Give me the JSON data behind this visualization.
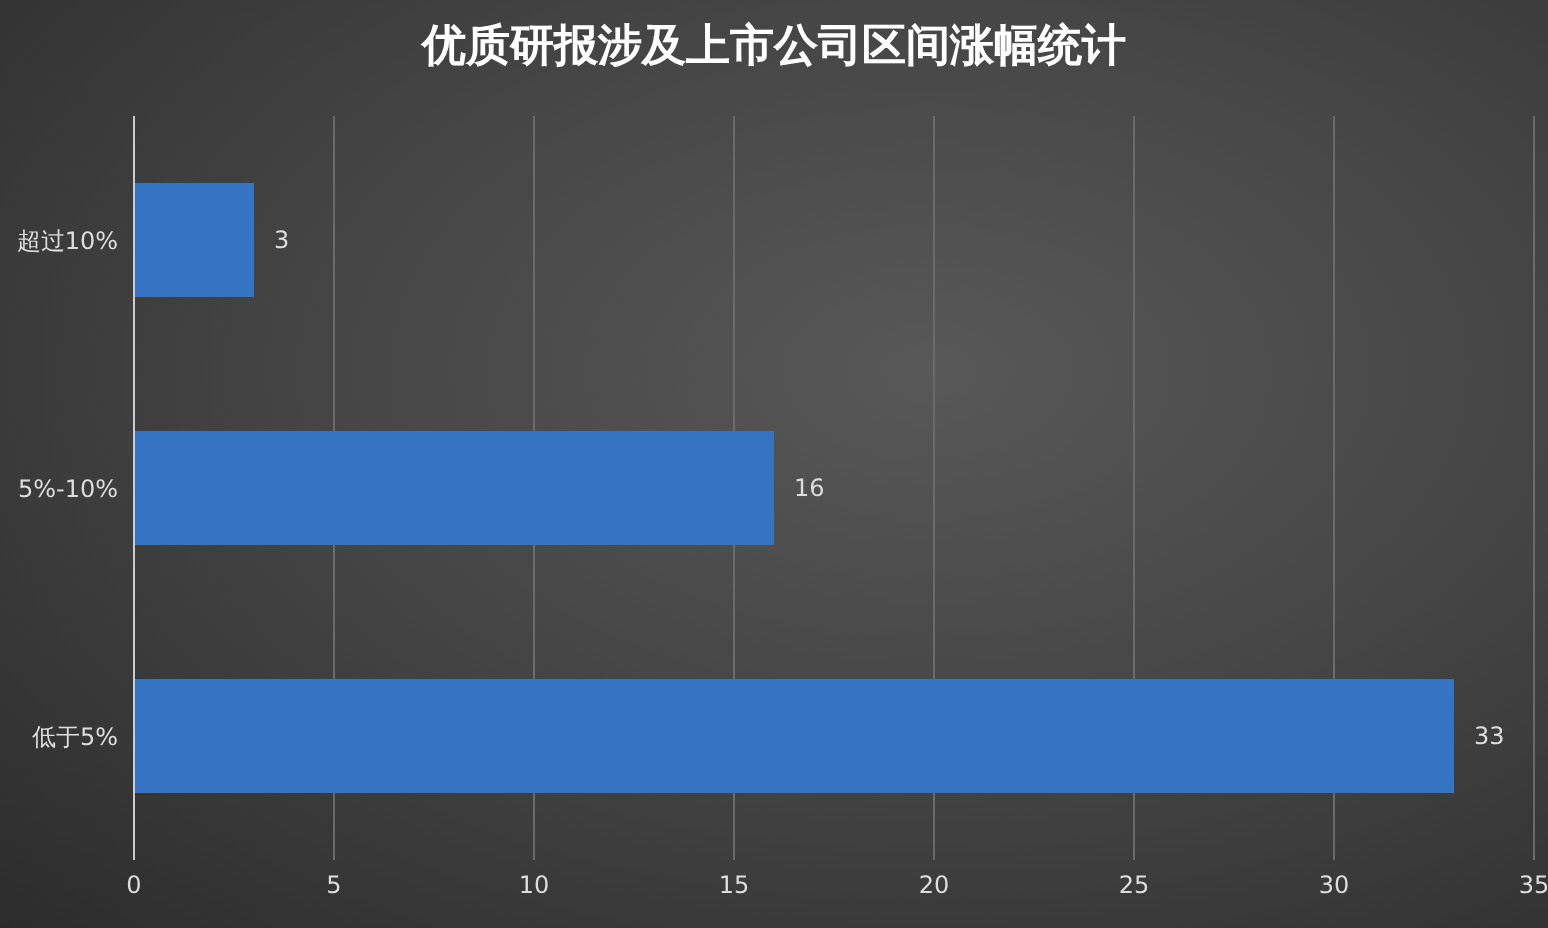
{
  "chart_data": {
    "type": "bar",
    "title": "优质研报涉及上市公司区间涨幅统计",
    "orientation": "horizontal",
    "categories": [
      "超过10%",
      "5%-10%",
      "低于5%"
    ],
    "values": [
      3,
      16,
      33
    ],
    "color": "#3573c3",
    "xlim": [
      0,
      35
    ],
    "xticks": [
      0,
      5,
      10,
      15,
      20,
      25,
      30,
      35
    ],
    "grid": "x",
    "data_labels": true
  }
}
